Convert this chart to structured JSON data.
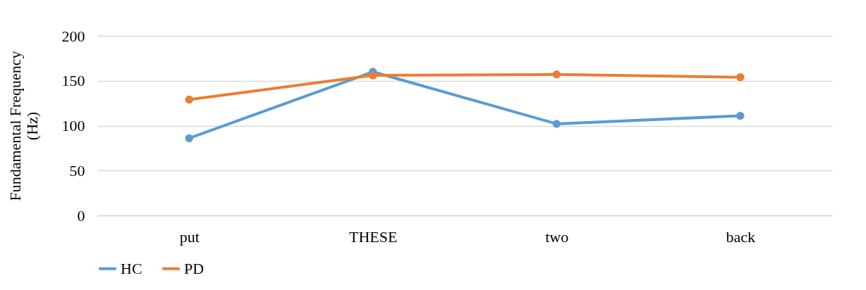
{
  "chart_data": {
    "type": "line",
    "ylabel": "Fundamental Frequency (Hz)",
    "categories": [
      "put",
      "THESE",
      "two",
      "back"
    ],
    "series": [
      {
        "name": "HC",
        "color": "#5b9bd5",
        "values": [
          86,
          160,
          102,
          111
        ]
      },
      {
        "name": "PD",
        "color": "#ed7d31",
        "values": [
          129,
          156,
          157,
          154
        ]
      }
    ],
    "ylim": [
      0,
      200
    ],
    "yticks": [
      0,
      50,
      100,
      150,
      200
    ],
    "grid": "y",
    "legend": "bottom",
    "marker": "circle",
    "line_style": "solid"
  }
}
